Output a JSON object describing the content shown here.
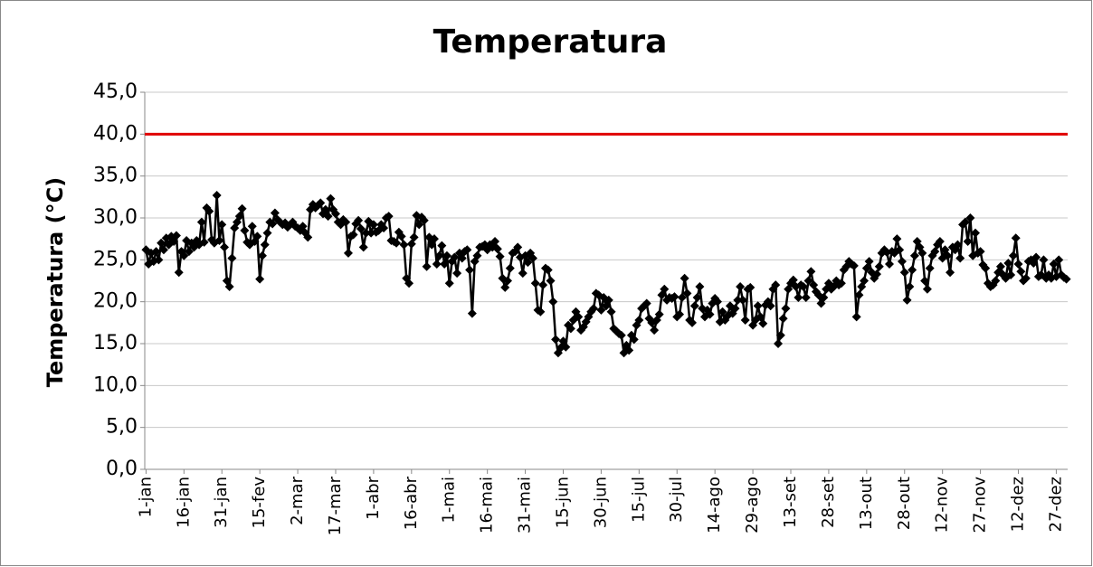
{
  "chart_data": {
    "type": "line",
    "title": "Temperatura",
    "y_label": "Temperatura (°C)",
    "categories": [
      "1-jan",
      null,
      null,
      null,
      null,
      null,
      null,
      null,
      null,
      null,
      null,
      null,
      null,
      null,
      null,
      "16-jan",
      null,
      null,
      null,
      null,
      null,
      null,
      null,
      null,
      null,
      null,
      null,
      null,
      null,
      null,
      "31-jan",
      null,
      null,
      null,
      null,
      null,
      null,
      null,
      null,
      null,
      null,
      null,
      null,
      null,
      null,
      "15-fev",
      null,
      null,
      null,
      null,
      null,
      null,
      null,
      null,
      null,
      null,
      null,
      null,
      null,
      null,
      "2-mar",
      null,
      null,
      null,
      null,
      null,
      null,
      null,
      null,
      null,
      null,
      null,
      null,
      null,
      null,
      "17-mar",
      null,
      null,
      null,
      null,
      null,
      null,
      null,
      null,
      null,
      null,
      null,
      null,
      null,
      null,
      "1-abr",
      null,
      null,
      null,
      null,
      null,
      null,
      null,
      null,
      null,
      null,
      null,
      null,
      null,
      null,
      "16-abr",
      null,
      null,
      null,
      null,
      null,
      null,
      null,
      null,
      null,
      null,
      null,
      null,
      null,
      null,
      "1-mai",
      null,
      null,
      null,
      null,
      null,
      null,
      null,
      null,
      null,
      null,
      null,
      null,
      null,
      null,
      "16-mai",
      null,
      null,
      null,
      null,
      null,
      null,
      null,
      null,
      null,
      null,
      null,
      null,
      null,
      null,
      "31-mai",
      null,
      null,
      null,
      null,
      null,
      null,
      null,
      null,
      null,
      null,
      null,
      null,
      null,
      null,
      "15-jun",
      null,
      null,
      null,
      null,
      null,
      null,
      null,
      null,
      null,
      null,
      null,
      null,
      null,
      null,
      "30-jun",
      null,
      null,
      null,
      null,
      null,
      null,
      null,
      null,
      null,
      null,
      null,
      null,
      null,
      null,
      "15-jul",
      null,
      null,
      null,
      null,
      null,
      null,
      null,
      null,
      null,
      null,
      null,
      null,
      null,
      null,
      "30-jul",
      null,
      null,
      null,
      null,
      null,
      null,
      null,
      null,
      null,
      null,
      null,
      null,
      null,
      null,
      "14-ago",
      null,
      null,
      null,
      null,
      null,
      null,
      null,
      null,
      null,
      null,
      null,
      null,
      null,
      null,
      "29-ago",
      null,
      null,
      null,
      null,
      null,
      null,
      null,
      null,
      null,
      null,
      null,
      null,
      null,
      null,
      "13-set",
      null,
      null,
      null,
      null,
      null,
      null,
      null,
      null,
      null,
      null,
      null,
      null,
      null,
      null,
      "28-set",
      null,
      null,
      null,
      null,
      null,
      null,
      null,
      null,
      null,
      null,
      null,
      null,
      null,
      null,
      "13-out",
      null,
      null,
      null,
      null,
      null,
      null,
      null,
      null,
      null,
      null,
      null,
      null,
      null,
      null,
      "28-out",
      null,
      null,
      null,
      null,
      null,
      null,
      null,
      null,
      null,
      null,
      null,
      null,
      null,
      null,
      "12-nov",
      null,
      null,
      null,
      null,
      null,
      null,
      null,
      null,
      null,
      null,
      null,
      null,
      null,
      null,
      "27-nov",
      null,
      null,
      null,
      null,
      null,
      null,
      null,
      null,
      null,
      null,
      null,
      null,
      null,
      null,
      "12-dez",
      null,
      null,
      null,
      null,
      null,
      null,
      null,
      null,
      null,
      null,
      null,
      null,
      null,
      null,
      "27-dez",
      null,
      null,
      null,
      null
    ],
    "series": [
      {
        "color": "#000000",
        "values": [
          26.2,
          24.5,
          25.8,
          24.8,
          26,
          25,
          27,
          26.2,
          27.6,
          26.8,
          27.8,
          27.2,
          27.9,
          23.5,
          26,
          25.5,
          27.3,
          26,
          27,
          26.5,
          27.3,
          26.8,
          29.5,
          27.1,
          31.2,
          30.8,
          27.4,
          27,
          32.7,
          27.3,
          29.2,
          26.5,
          22.5,
          21.8,
          25.2,
          28.8,
          29.5,
          30.2,
          31.1,
          28.5,
          27.1,
          26.8,
          29,
          27.2,
          27.8,
          22.7,
          25.5,
          26.8,
          28.2,
          29.5,
          29.3,
          30.6,
          29.8,
          29.5,
          29.2,
          29.4,
          28.9,
          29.2,
          29.5,
          29,
          28.8,
          28.5,
          29,
          28.2,
          27.7,
          31,
          31.6,
          31.2,
          31.5,
          31.8,
          30.5,
          31,
          30.2,
          32.3,
          31,
          30.5,
          29.5,
          29.2,
          29.8,
          29.5,
          25.8,
          27.8,
          28,
          29.3,
          29.7,
          28.7,
          26.5,
          28.2,
          29.6,
          28.2,
          29.2,
          28.3,
          28.5,
          29.2,
          28.8,
          30,
          30.2,
          27.3,
          27.2,
          27,
          28.3,
          27.8,
          26.8,
          22.8,
          22.2,
          26.9,
          27.7,
          30.3,
          29.2,
          30.1,
          29.7,
          24.2,
          27.7,
          26.8,
          27.5,
          24.5,
          25.5,
          26.7,
          24.5,
          25.5,
          22.2,
          24.8,
          25.3,
          23.4,
          25.8,
          25.2,
          26,
          26.2,
          23.8,
          18.6,
          24.8,
          25.5,
          26.5,
          26.6,
          26.8,
          26.2,
          26.8,
          26.5,
          27.2,
          26.3,
          25.4,
          22.8,
          21.7,
          22.5,
          24,
          25.8,
          26,
          26.5,
          25.3,
          23.4,
          25.5,
          24.7,
          25.8,
          25.2,
          22.2,
          19,
          18.8,
          22,
          24,
          23.8,
          22.5,
          20,
          15.5,
          13.9,
          14.5,
          15.3,
          14.6,
          17.2,
          16.8,
          17.8,
          18.8,
          18.2,
          16.6,
          17,
          17.6,
          18.2,
          18.8,
          19.2,
          21,
          20.8,
          19,
          20.5,
          19.5,
          20.2,
          18.8,
          16.8,
          16.5,
          16.2,
          16,
          13.9,
          14.8,
          14.2,
          16,
          15.5,
          17.2,
          17.8,
          19.2,
          19.5,
          19.8,
          18,
          17.5,
          16.6,
          17.8,
          18.5,
          20.8,
          21.5,
          20.2,
          20.5,
          20.4,
          20.6,
          18.2,
          18.5,
          20.5,
          22.8,
          21,
          17.8,
          17.5,
          19.5,
          20.5,
          21.8,
          19.2,
          18.2,
          19,
          18.5,
          19.8,
          20.4,
          20,
          17.6,
          18.8,
          17.8,
          18.3,
          19.5,
          18.6,
          19.2,
          20.2,
          21.8,
          20.2,
          17.8,
          21.5,
          21.7,
          17.2,
          17.8,
          19.5,
          18.2,
          17.4,
          19.6,
          20,
          19.5,
          21.5,
          22,
          15,
          16,
          18,
          19.2,
          21.5,
          22.2,
          22.6,
          21.8,
          20.5,
          22,
          21.8,
          20.5,
          22.5,
          23.6,
          22,
          21.2,
          20.8,
          19.8,
          20.5,
          21.5,
          22.2,
          21.5,
          21.8,
          22.5,
          22,
          22.2,
          23.8,
          24.2,
          24.8,
          24.5,
          24.3,
          18.2,
          20.8,
          21.8,
          22.5,
          24,
          24.8,
          23.5,
          22.8,
          23.3,
          24.2,
          25.8,
          26.2,
          25.9,
          24.5,
          26,
          25.8,
          27.5,
          26.2,
          24.8,
          23.5,
          20.2,
          21.8,
          23.8,
          25.5,
          27.2,
          26.5,
          25.8,
          22.5,
          21.5,
          24,
          25.5,
          26,
          26.8,
          27.2,
          25.2,
          26.2,
          25.5,
          23.5,
          26.5,
          26.2,
          26.8,
          25.2,
          29.2,
          29.5,
          27.2,
          30,
          25.5,
          28.2,
          25.8,
          26,
          24.4,
          24,
          22.2,
          21.8,
          22,
          22.5,
          23.5,
          24.2,
          23.2,
          22.8,
          24.6,
          23.2,
          25.5,
          27.6,
          24.5,
          23.6,
          22.5,
          22.8,
          24.8,
          25,
          24.6,
          25.3,
          23,
          23.2,
          25,
          22.8,
          23.2,
          22.8,
          24.5,
          23,
          25,
          23.2,
          22.9,
          22.7
        ]
      }
    ],
    "threshold": {
      "value": 40,
      "color": "#e00000"
    },
    "ylim": [
      0,
      45
    ],
    "yticks": [
      {
        "value": 0,
        "label": "0,0"
      },
      {
        "value": 5,
        "label": "5,0"
      },
      {
        "value": 10,
        "label": "10,0"
      },
      {
        "value": 15,
        "label": "15,0"
      },
      {
        "value": 20,
        "label": "20,0"
      },
      {
        "value": 25,
        "label": "25,0"
      },
      {
        "value": 30,
        "label": "30,0"
      },
      {
        "value": 35,
        "label": "35,0"
      },
      {
        "value": 40,
        "label": "40,0"
      },
      {
        "value": 45,
        "label": "45,0"
      }
    ],
    "grid": true
  }
}
